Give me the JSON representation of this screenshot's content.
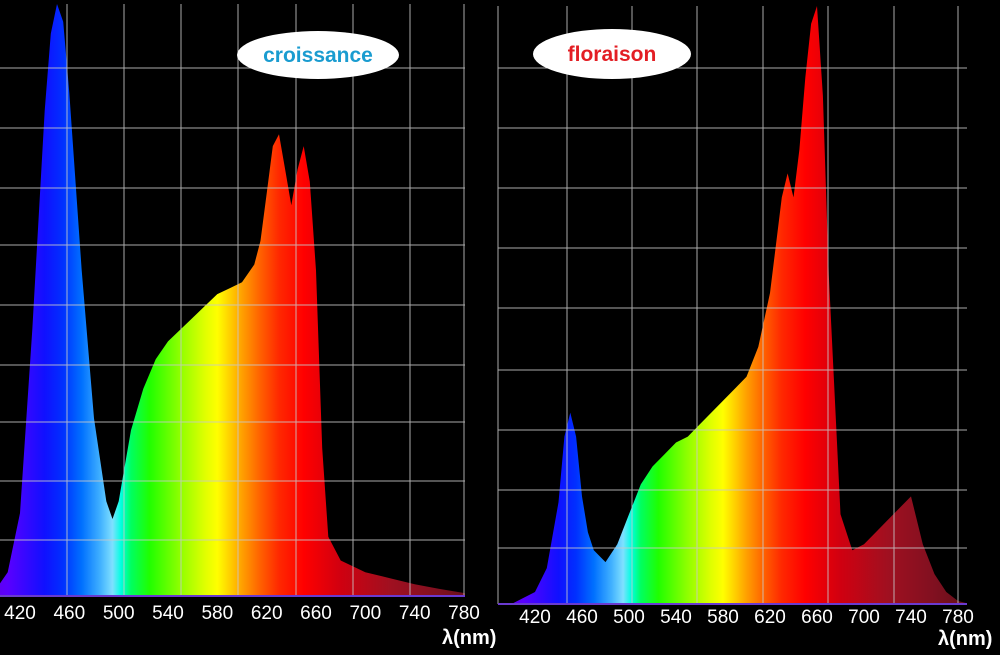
{
  "chart_data": [
    {
      "type": "area",
      "title": "croissance",
      "title_color": "#1a9cd0",
      "xlabel": "λ(nm)",
      "xlim": [
        380,
        790
      ],
      "ylim": [
        0,
        1
      ],
      "x_ticks": [
        420,
        460,
        500,
        540,
        580,
        620,
        660,
        700,
        740,
        780
      ],
      "grid": true,
      "series": [
        {
          "x": [
            380,
            400,
            410,
            420,
            430,
            440,
            445,
            450,
            455,
            460,
            470,
            480,
            490,
            495,
            500,
            505,
            510,
            520,
            530,
            540,
            550,
            560,
            570,
            580,
            590,
            600,
            610,
            615,
            620,
            625,
            630,
            635,
            640,
            645,
            650,
            655,
            660,
            665,
            670,
            680,
            690,
            700,
            720,
            740,
            760,
            780,
            790
          ],
          "y": [
            0.0,
            0.01,
            0.04,
            0.14,
            0.45,
            0.82,
            0.95,
            1.0,
            0.97,
            0.85,
            0.55,
            0.3,
            0.16,
            0.13,
            0.16,
            0.22,
            0.28,
            0.35,
            0.4,
            0.43,
            0.45,
            0.47,
            0.49,
            0.51,
            0.52,
            0.53,
            0.56,
            0.6,
            0.68,
            0.76,
            0.78,
            0.72,
            0.66,
            0.72,
            0.76,
            0.7,
            0.55,
            0.25,
            0.1,
            0.06,
            0.05,
            0.04,
            0.03,
            0.02,
            0.012,
            0.005,
            0.0
          ]
        }
      ]
    },
    {
      "type": "area",
      "title": "floraison",
      "title_color": "#e31e24",
      "xlabel": "λ(nm)",
      "xlim": [
        380,
        790
      ],
      "ylim": [
        0,
        1
      ],
      "x_ticks": [
        420,
        460,
        500,
        540,
        580,
        620,
        660,
        700,
        740,
        780
      ],
      "grid": true,
      "series": [
        {
          "x": [
            380,
            400,
            420,
            430,
            440,
            445,
            450,
            455,
            460,
            465,
            470,
            480,
            490,
            500,
            510,
            520,
            530,
            540,
            550,
            560,
            570,
            580,
            590,
            600,
            610,
            620,
            630,
            635,
            640,
            645,
            650,
            655,
            660,
            665,
            670,
            680,
            690,
            700,
            710,
            720,
            730,
            740,
            745,
            750,
            760,
            770,
            780,
            790
          ],
          "y": [
            0.0,
            0.0,
            0.02,
            0.06,
            0.17,
            0.28,
            0.32,
            0.28,
            0.18,
            0.12,
            0.09,
            0.07,
            0.1,
            0.15,
            0.2,
            0.23,
            0.25,
            0.27,
            0.28,
            0.3,
            0.32,
            0.34,
            0.36,
            0.38,
            0.43,
            0.52,
            0.68,
            0.72,
            0.68,
            0.76,
            0.88,
            0.97,
            1.0,
            0.85,
            0.55,
            0.15,
            0.09,
            0.1,
            0.12,
            0.14,
            0.16,
            0.18,
            0.14,
            0.1,
            0.05,
            0.02,
            0.005,
            0.0
          ]
        }
      ]
    }
  ]
}
